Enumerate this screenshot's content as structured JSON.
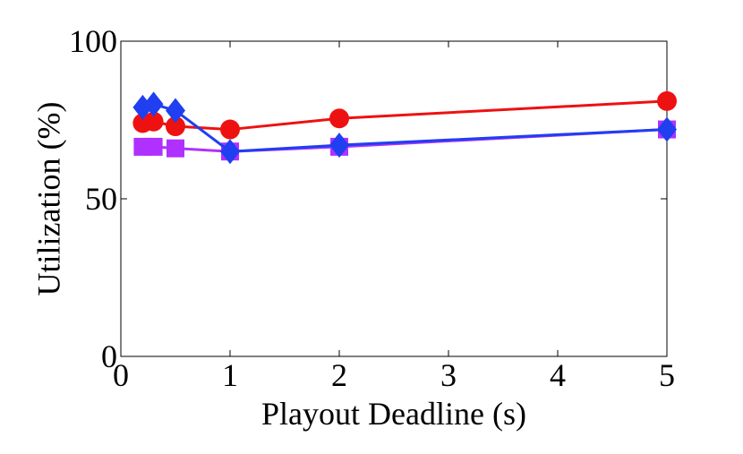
{
  "chart_data": {
    "type": "line",
    "title": "",
    "xlabel": "Playout Deadline (s)",
    "ylabel": "Utilization (%)",
    "xlim": [
      0,
      5
    ],
    "ylim": [
      0,
      100
    ],
    "xticks": [
      0,
      1,
      2,
      3,
      4,
      5
    ],
    "xtick_labels": [
      "0",
      "1",
      "2",
      "3",
      "4",
      "5"
    ],
    "yticks": [
      0,
      50,
      100
    ],
    "ytick_labels": [
      "0",
      "50",
      "100"
    ],
    "grid": false,
    "legend": "none",
    "series": [
      {
        "marker": "circle",
        "color": "#ee1111",
        "x": [
          0.2,
          0.3,
          0.5,
          1,
          2,
          5
        ],
        "y": [
          74,
          74.5,
          73,
          72,
          75.5,
          81
        ]
      },
      {
        "marker": "square",
        "color": "#b030ff",
        "x": [
          0.2,
          0.3,
          0.5,
          1,
          2,
          5
        ],
        "y": [
          66.5,
          66.5,
          66,
          65,
          66.5,
          72
        ]
      },
      {
        "marker": "diamond",
        "color": "#1f3ff0",
        "x": [
          0.2,
          0.3,
          0.5,
          1,
          2,
          5
        ],
        "y": [
          79,
          80,
          78,
          65,
          67,
          72
        ]
      }
    ]
  }
}
